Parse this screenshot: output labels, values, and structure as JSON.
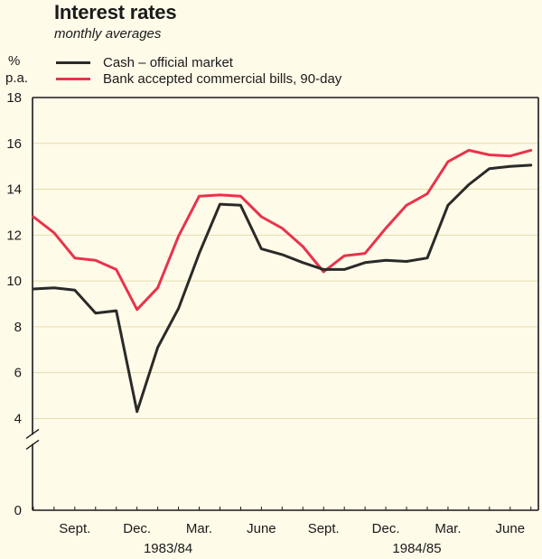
{
  "chart_data": {
    "type": "line",
    "title": "Interest rates",
    "subtitle": "monthly averages",
    "ylabel_line1": "%",
    "ylabel_line2": "p.a.",
    "ylim": [
      0,
      18
    ],
    "y_axis_break_below": 4,
    "yticks": [
      0,
      4,
      6,
      8,
      10,
      12,
      14,
      16,
      18
    ],
    "x_months": [
      "Jul 1983",
      "Aug 1983",
      "Sep 1983",
      "Oct 1983",
      "Nov 1983",
      "Dec 1983",
      "Jan 1984",
      "Feb 1984",
      "Mar 1984",
      "Apr 1984",
      "May 1984",
      "Jun 1984",
      "Jul 1984",
      "Aug 1984",
      "Sep 1984",
      "Oct 1984",
      "Nov 1984",
      "Dec 1984",
      "Jan 1985",
      "Feb 1985",
      "Mar 1985",
      "Apr 1985",
      "May 1985",
      "Jun 1985",
      "Jul 1985"
    ],
    "x_tick_labels": [
      {
        "label": "Sept.",
        "month_index": 2
      },
      {
        "label": "Dec.",
        "month_index": 5
      },
      {
        "label": "Mar.",
        "month_index": 8
      },
      {
        "label": "June",
        "month_index": 11
      },
      {
        "label": "Sept.",
        "month_index": 14
      },
      {
        "label": "Dec.",
        "month_index": 17
      },
      {
        "label": "Mar.",
        "month_index": 20
      },
      {
        "label": "June",
        "month_index": 23
      }
    ],
    "year_labels": [
      {
        "label": "1983/84",
        "center_month_index": 6.5
      },
      {
        "label": "1984/85",
        "center_month_index": 18.5
      }
    ],
    "grid": true,
    "legend_position": "top-left",
    "series": [
      {
        "name": "Cash – official market",
        "color": "#2a2a28",
        "values": [
          9.65,
          9.7,
          9.6,
          8.6,
          8.7,
          4.3,
          7.1,
          8.8,
          11.2,
          13.35,
          13.3,
          11.4,
          11.15,
          10.8,
          10.5,
          10.5,
          10.8,
          10.9,
          10.85,
          11.0,
          13.3,
          14.2,
          14.9,
          15.0,
          15.05
        ]
      },
      {
        "name": "Bank accepted commercial bills, 90-day",
        "color": "#e8334c",
        "values": [
          12.8,
          12.1,
          11.0,
          10.9,
          10.5,
          8.75,
          9.7,
          11.95,
          13.7,
          13.75,
          13.7,
          12.8,
          12.3,
          11.5,
          10.4,
          11.1,
          11.2,
          12.3,
          13.3,
          13.8,
          15.2,
          15.7,
          15.5,
          15.45,
          15.7
        ]
      }
    ]
  }
}
